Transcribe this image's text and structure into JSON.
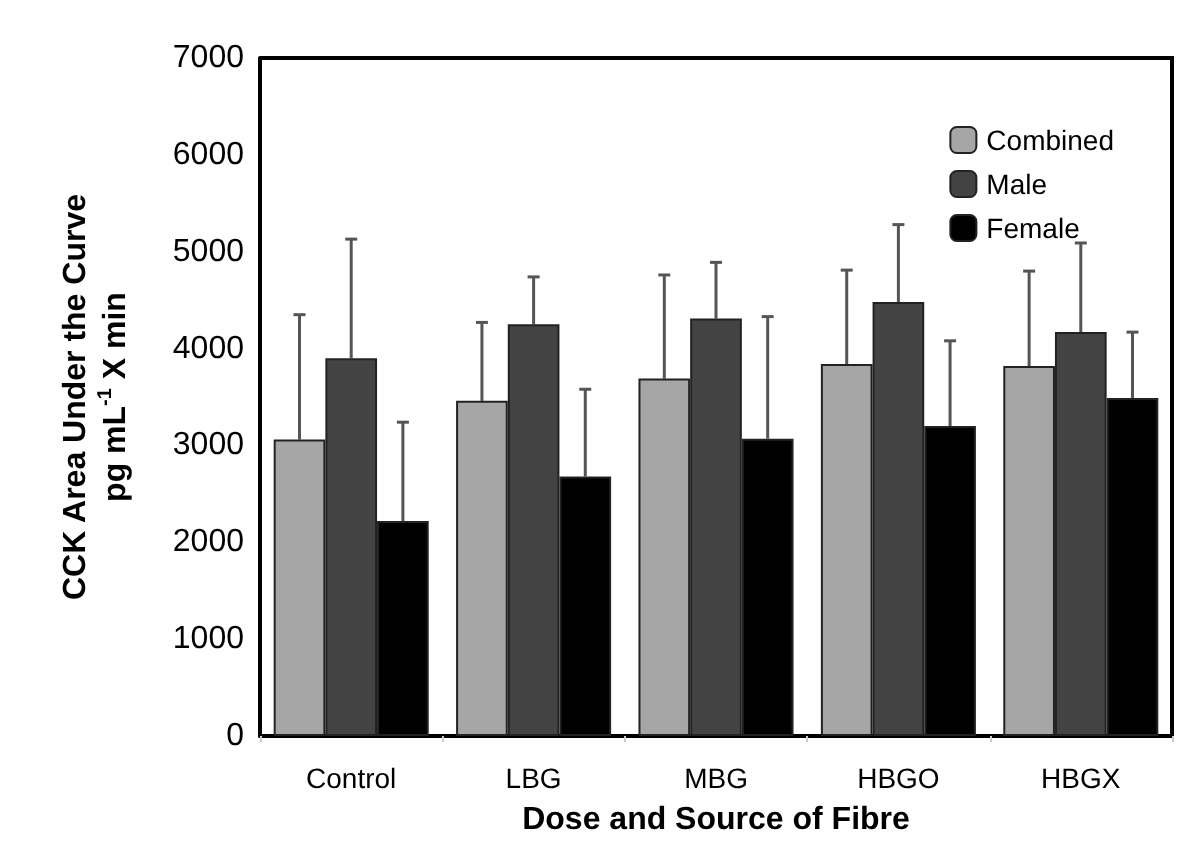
{
  "chart_data": {
    "type": "bar",
    "xlabel": "Dose and Source of Fibre",
    "ylabel": "CCK Area Under the Curve\npg mL$^{-1}$ X min",
    "categories": [
      "Control",
      "LBG",
      "MBG",
      "HBGO",
      "HBGX"
    ],
    "series": [
      {
        "name": "Combined",
        "color": "#a6a6a6",
        "values": [
          3060,
          3460,
          3690,
          3840,
          3820
        ],
        "errors": [
          [
            3060,
            4350
          ],
          [
            3460,
            4270
          ],
          [
            3690,
            4760
          ],
          [
            3840,
            4810
          ],
          [
            3820,
            4800
          ]
        ]
      },
      {
        "name": "Male",
        "color": "#434343",
        "values": [
          3900,
          4250,
          4310,
          4480,
          4170
        ],
        "errors": [
          [
            3900,
            5130
          ],
          [
            4250,
            4740
          ],
          [
            4310,
            4890
          ],
          [
            4480,
            5280
          ],
          [
            4170,
            5090
          ]
        ]
      },
      {
        "name": "Female",
        "color": "#000000",
        "values": [
          2220,
          2680,
          3070,
          3200,
          3490
        ],
        "errors": [
          [
            2220,
            3240
          ],
          [
            2680,
            3580
          ],
          [
            3070,
            4330
          ],
          [
            3200,
            4080
          ],
          [
            3490,
            4170
          ]
        ]
      }
    ],
    "ylim": [
      0,
      7000
    ],
    "yticks": [
      0,
      1000,
      2000,
      3000,
      4000,
      5000,
      6000,
      7000
    ],
    "grid": false,
    "legend": "top right"
  }
}
